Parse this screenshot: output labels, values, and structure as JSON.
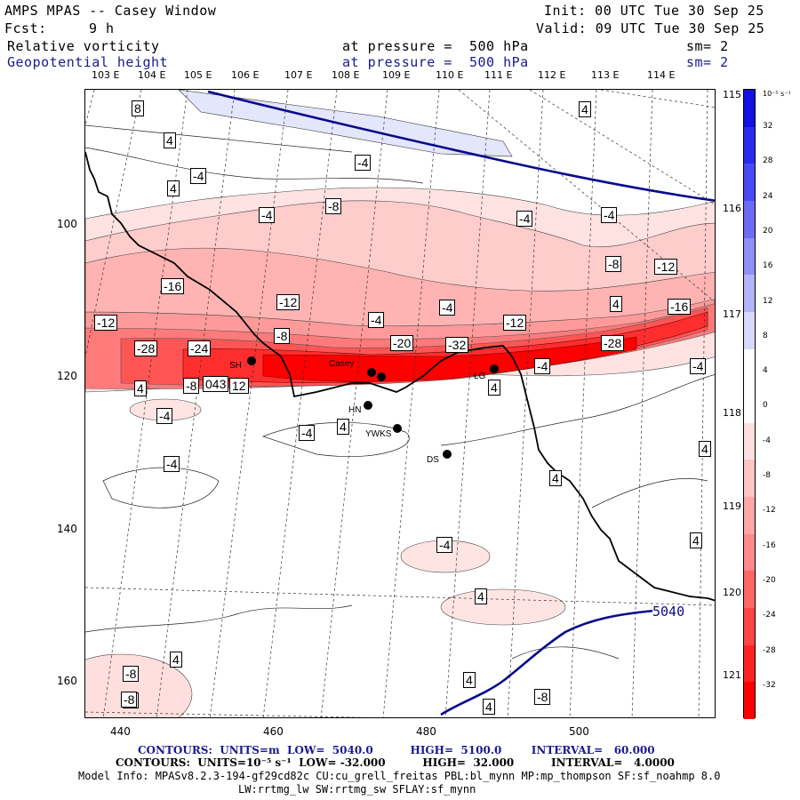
{
  "header": {
    "title": "AMPS MPAS -- Casey Window",
    "init": "Init: 00 UTC Tue 30 Sep 25",
    "fcst_label": "Fcst:",
    "fcst_value": "9 h",
    "valid": "Valid: 09 UTC Tue 30 Sep 25",
    "field1_name": "Relative vorticity",
    "field1_level": "at pressure =  500 hPa",
    "field1_sm": "sm= 2",
    "field2_name": "Geopotential height",
    "field2_level": "at pressure =  500 hPa",
    "field2_sm": "sm= 2"
  },
  "top_longitudes": [
    "103 E",
    "104 E",
    "105 E",
    "106 E",
    "107 E",
    "108 E",
    "109 E",
    "110 E",
    "111 E",
    "112 E",
    "113 E",
    "114 E"
  ],
  "right_longitudes": [
    "115 E",
    "116 E",
    "117 E",
    "118 E",
    "119 E",
    "120 E",
    "121 E"
  ],
  "x_axis": {
    "ticks": [
      "440",
      "460",
      "480",
      "500"
    ]
  },
  "y_axis": {
    "ticks": [
      "100",
      "120",
      "140",
      "160"
    ]
  },
  "colorbar": {
    "unit": "10⁻⁵ s⁻¹",
    "labels": [
      "32",
      "28",
      "24",
      "20",
      "16",
      "12",
      "8",
      "4",
      "0",
      "-4",
      "-8",
      "-12",
      "-16",
      "-20",
      "-24",
      "-28",
      "-32"
    ],
    "colors": [
      "#1111e0",
      "#2b2bf0",
      "#4a4af4",
      "#6b6bf6",
      "#8f8ff8",
      "#b3b3fa",
      "#d8d8fc",
      "#ffffff",
      "#ffffff",
      "#ffe0e0",
      "#ffc4c4",
      "#ffa6a6",
      "#ff8888",
      "#ff6666",
      "#ff4444",
      "#ff2222",
      "#ff0000"
    ]
  },
  "stations": [
    "SH",
    "Casey",
    "LG",
    "HN",
    "YWKS",
    "DS"
  ],
  "contour_labels": [
    "8",
    "4",
    "4",
    "-4",
    "-4",
    "-8",
    "-4",
    "-4",
    "4",
    "-4",
    "-8",
    "-12",
    "-16",
    "-12",
    "-4",
    "-8",
    "-4",
    "-12",
    "-16",
    "-12",
    "-28",
    "-24",
    "-20",
    "-32",
    "-28",
    "-4",
    "-4",
    "-8",
    "043",
    "12",
    "4",
    "-4",
    "4",
    "-4",
    "4",
    "4",
    "-4",
    "4",
    "-4",
    "4",
    "-4",
    "4",
    "-8",
    "-4",
    "-8",
    "4",
    "4",
    "4",
    "4",
    "-8"
  ],
  "height_label": "5040",
  "footer": {
    "contours1": "CONTOURS:  UNITS=m  LOW=  5040.0          HIGH=  5100.0        INTERVAL=   60.000",
    "contours2": "CONTOURS:  UNITS=10⁻⁵ s⁻¹  LOW= -32.000          HIGH=  32.000          INTERVAL=   4.0000",
    "model_info": "Model Info: MPASv8.2.3-194-gf29cd82c CU:cu_grell_freitas PBL:bl_mynn MP:mp_thompson SF:sf_noahmp 8.0",
    "model_info2": "LW:rrtmg_lw SW:rrtmg_sw SFLAY:sf_mynn"
  }
}
